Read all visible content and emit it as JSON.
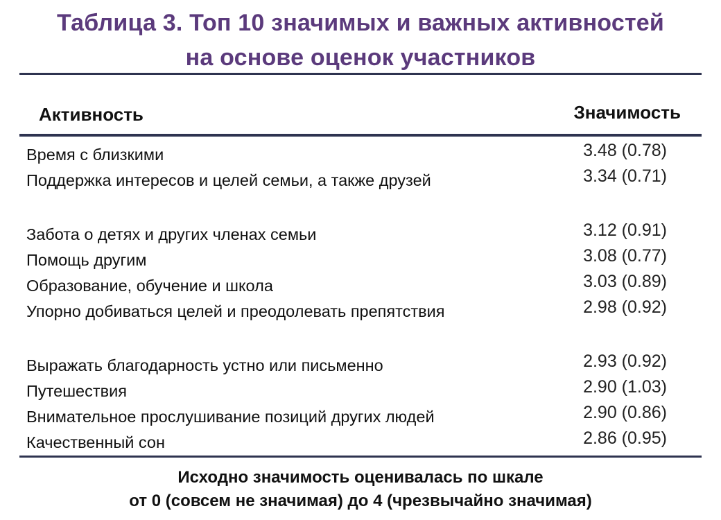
{
  "title": {
    "line1": "Таблица 3. Топ 10 значимых и важных активностей",
    "line2": "на основе оценок участников"
  },
  "columns": {
    "activity": "Активность",
    "significance": "Значимость"
  },
  "rows": [
    {
      "activity": "Время с близкими",
      "value": "3.48 (0.78)"
    },
    {
      "activity": "Поддержка интересов и целей семьи, а также друзей",
      "value": "3.34 (0.71)"
    },
    {
      "activity": "Забота о детях и других членах семьи",
      "value": "3.12 (0.91)"
    },
    {
      "activity": "Помощь другим",
      "value": "3.08 (0.77)"
    },
    {
      "activity": "Образование, обучение и школа",
      "value": "3.03 (0.89)"
    },
    {
      "activity": "Упорно добиваться целей и преодолевать препятствия",
      "value": "2.98 (0.92)"
    },
    {
      "activity": "Выражать благодарность устно или письменно",
      "value": "2.93 (0.92)"
    },
    {
      "activity": "Путешествия",
      "value": "2.90 (1.03)"
    },
    {
      "activity": "Внимательное прослушивание позиций других людей",
      "value": "2.90 (0.86)"
    },
    {
      "activity": "Качественный сон",
      "value": "2.86 (0.95)"
    }
  ],
  "footer": {
    "line1": "Исходно значимость оценивалась по шкале",
    "line2": "от 0 (совсем не значимая) до 4 (чрезвычайно значимая)"
  },
  "colors": {
    "title": "#5b3a7c",
    "rules": "#2e3350"
  }
}
